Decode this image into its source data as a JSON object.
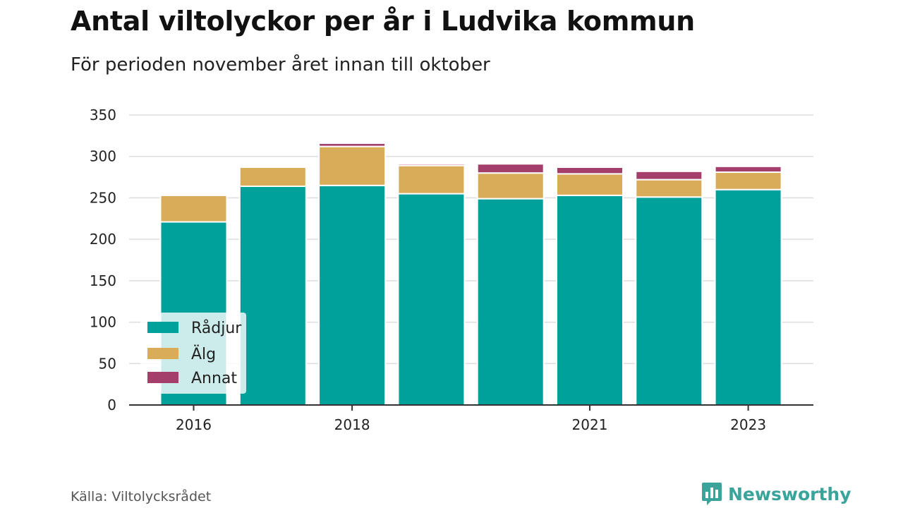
{
  "header": {
    "title": "Antal viltolyckor per år i Ludvika kommun",
    "subtitle": "För perioden november året innan till oktober"
  },
  "footer": {
    "source": "Källa: Viltolycksrådet",
    "brand": "Newsworthy",
    "brand_icon": "bar-chart-speech-bubble-icon"
  },
  "chart_data": {
    "type": "bar",
    "stacked": true,
    "title": "Antal viltolyckor per år i Ludvika kommun",
    "subtitle": "För perioden november året innan till oktober",
    "categories": [
      "2016",
      "2017",
      "2018",
      "2019",
      "2020",
      "2021",
      "2022",
      "2023"
    ],
    "x_tick_labels": [
      "2016",
      "",
      "2018",
      "",
      "",
      "2021",
      "",
      "2023"
    ],
    "series": [
      {
        "name": "Rådjur",
        "color": "#00a19a",
        "values": [
          221,
          264,
          265,
          255,
          249,
          253,
          251,
          260
        ]
      },
      {
        "name": "Älg",
        "color": "#d9ac5a",
        "values": [
          32,
          23,
          47,
          34,
          31,
          26,
          21,
          21
        ]
      },
      {
        "name": "Annat",
        "color": "#a33f6a",
        "values": [
          0,
          0,
          4,
          2,
          11,
          8,
          10,
          7
        ]
      }
    ],
    "yticks": [
      0,
      50,
      100,
      150,
      200,
      250,
      300,
      350
    ],
    "ylim": [
      0,
      350
    ],
    "grid": true,
    "legend": "bottom-left"
  }
}
